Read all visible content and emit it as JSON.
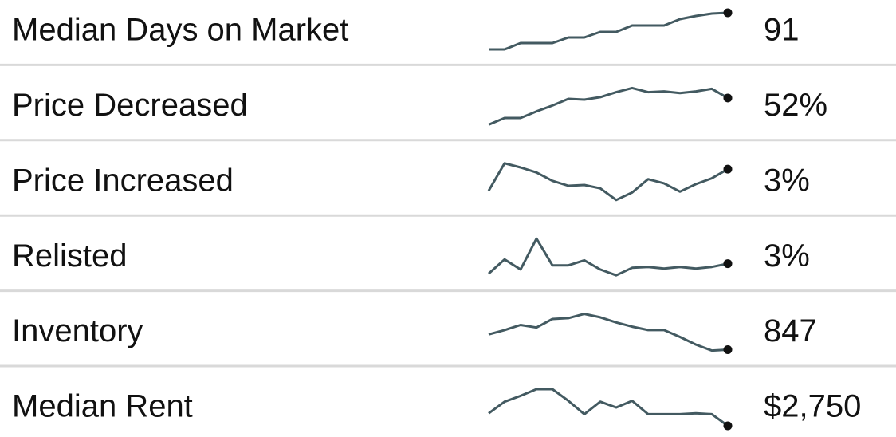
{
  "rows": [
    {
      "label": "Median Days on Market",
      "value": "91",
      "trend": [
        9,
        9,
        17,
        17,
        17,
        24,
        24,
        31,
        31,
        39,
        39,
        39,
        47,
        51,
        54,
        55
      ]
    },
    {
      "label": "Price Decreased",
      "value": "52%",
      "trend": [
        15,
        23,
        23,
        31,
        38,
        46,
        45,
        48,
        54,
        59,
        54,
        55,
        53,
        55,
        58,
        47
      ]
    },
    {
      "label": "Price Increased",
      "value": "3%",
      "trend": [
        22,
        55,
        50,
        44,
        34,
        28,
        29,
        25,
        11,
        20,
        36,
        31,
        21,
        30,
        37,
        48
      ]
    },
    {
      "label": "Relisted",
      "value": "3%",
      "trend": [
        8,
        25,
        13,
        50,
        18,
        18,
        24,
        13,
        6,
        15,
        16,
        14,
        16,
        14,
        16,
        20
      ]
    },
    {
      "label": "Inventory",
      "value": "847",
      "trend": [
        26,
        31,
        37,
        34,
        44,
        45,
        50,
        46,
        40,
        35,
        31,
        31,
        23,
        14,
        7,
        8
      ]
    },
    {
      "label": "Median Rent",
      "value": "$2,750",
      "trend": [
        22,
        36,
        43,
        51,
        51,
        37,
        21,
        36,
        29,
        37,
        21,
        21,
        21,
        22,
        21,
        7
      ]
    }
  ]
}
